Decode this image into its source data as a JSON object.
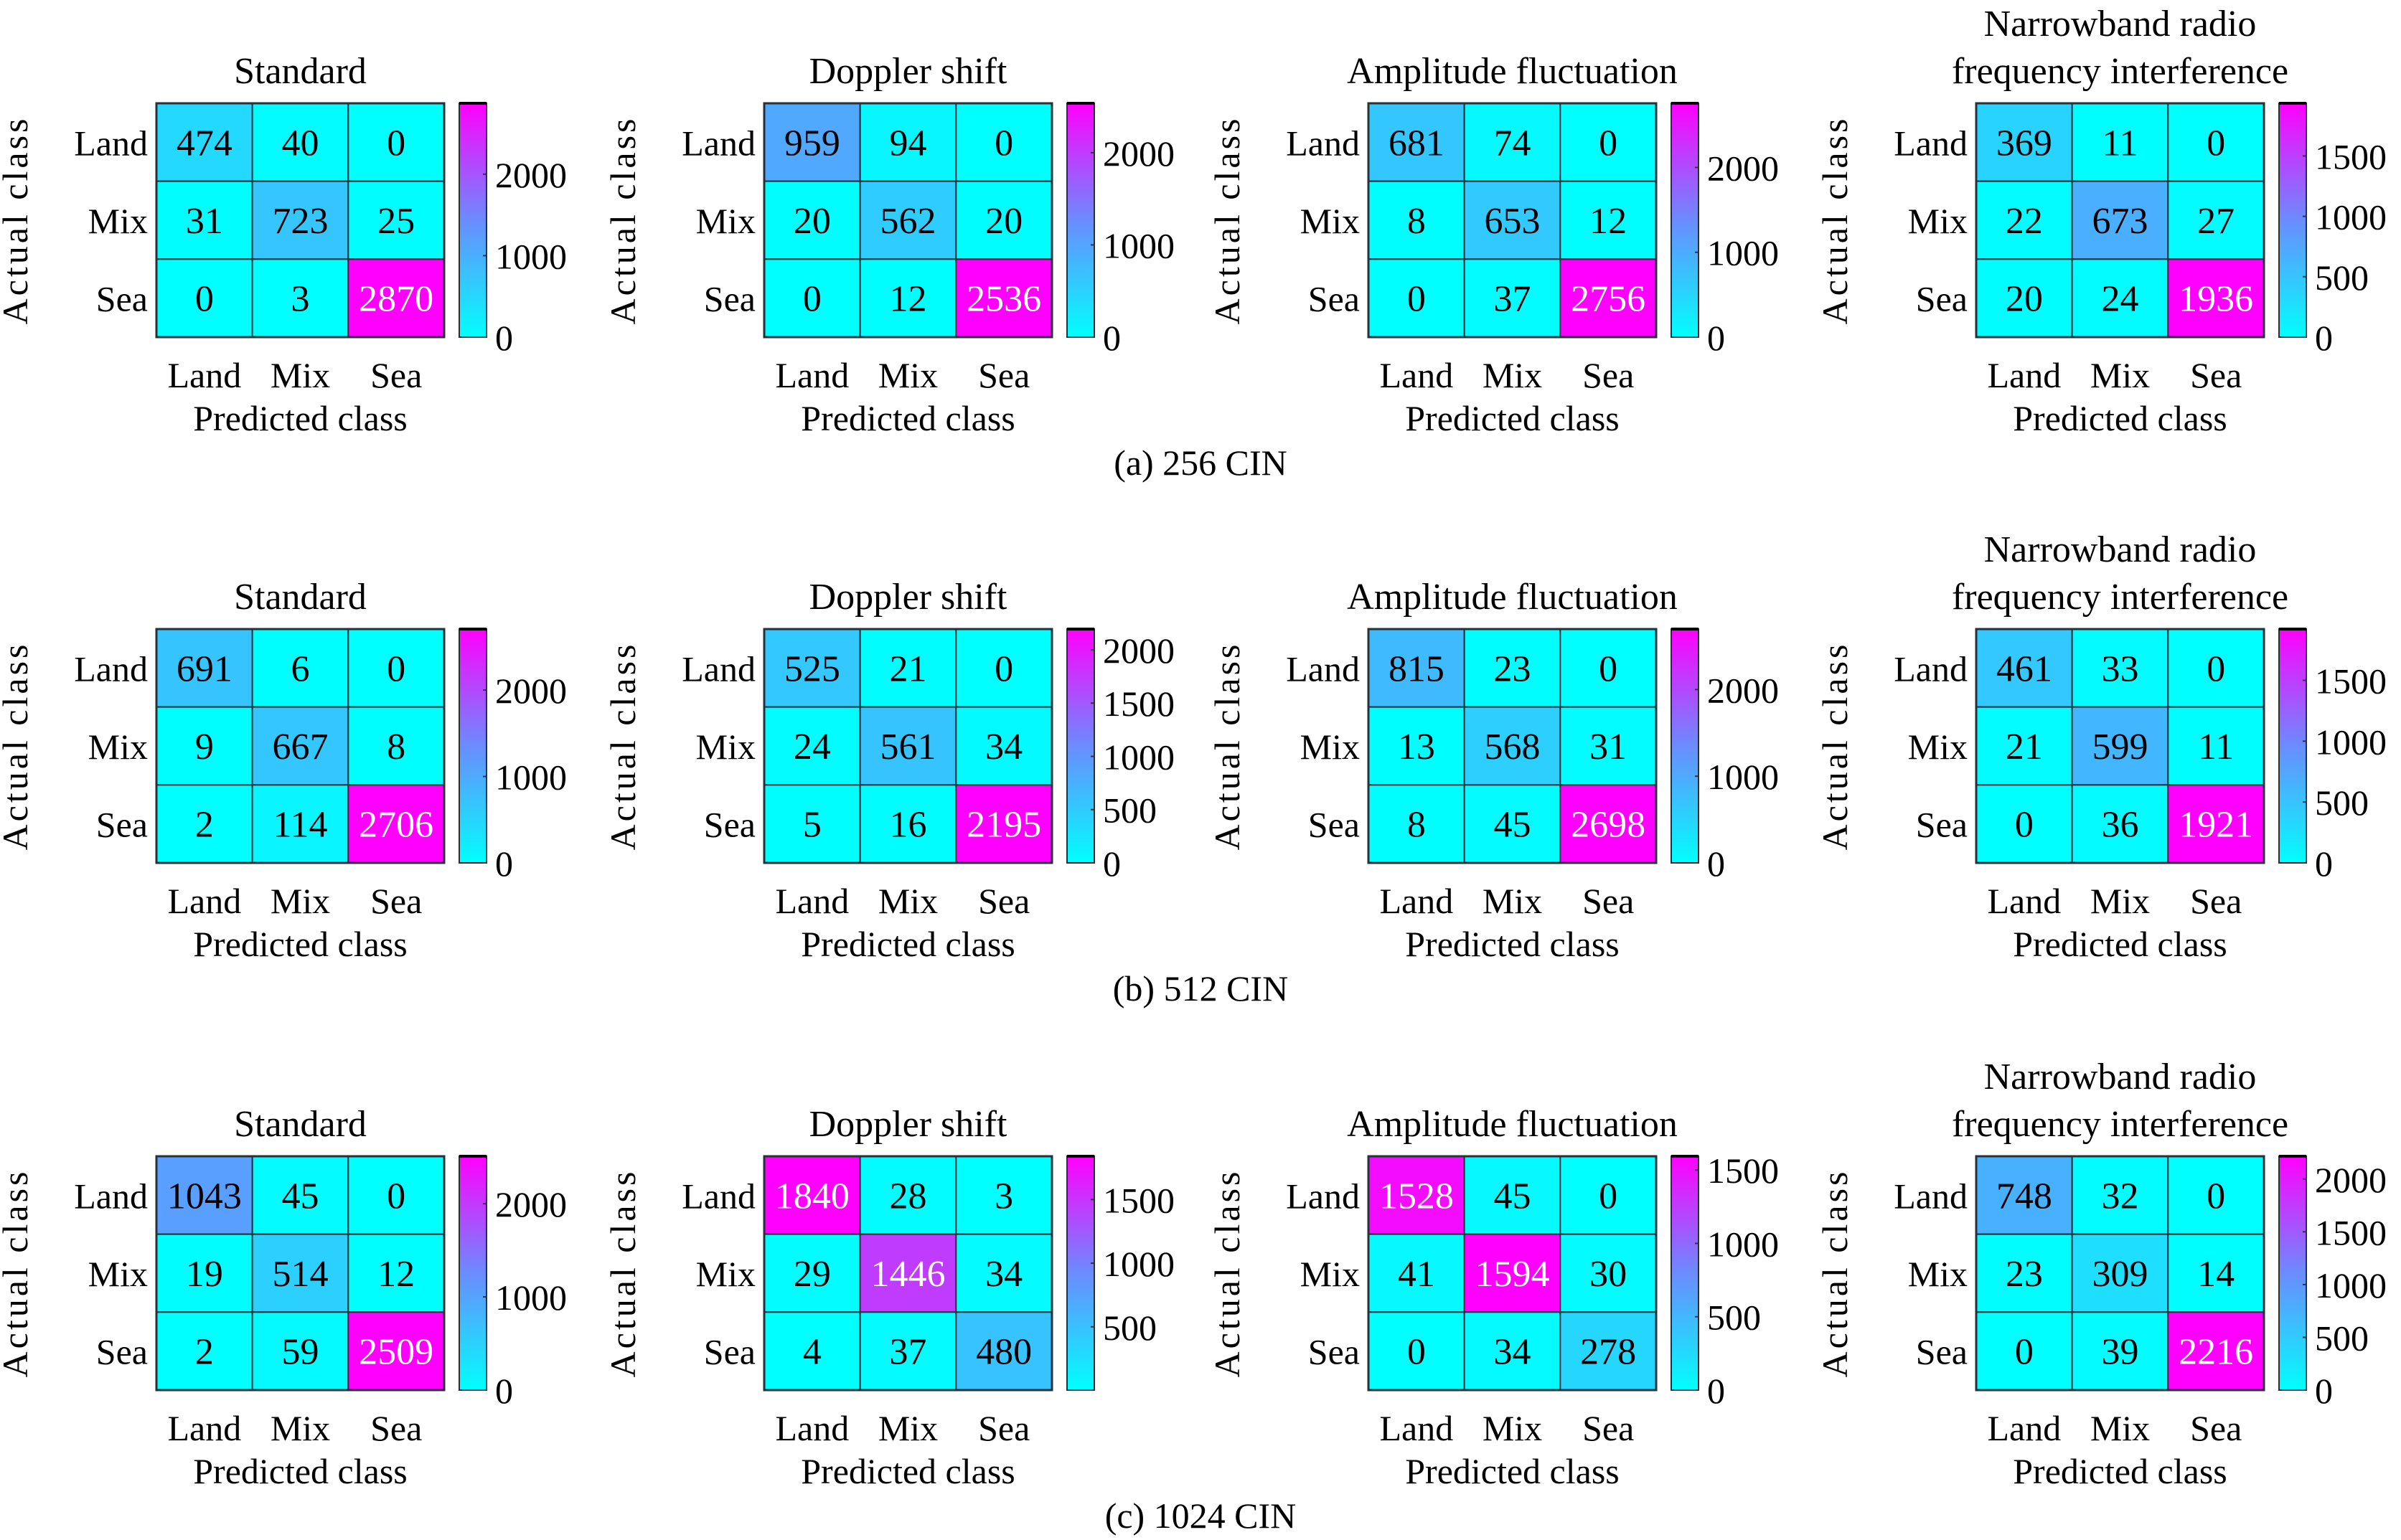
{
  "chart_data": {
    "type": "heatmap",
    "description": "Confusion matrices for land/mix/sea classification under different signal conditions and CIN sizes",
    "row_axis_label": "Actual class",
    "col_axis_label": "Predicted class",
    "classes": [
      "Land",
      "Mix",
      "Sea"
    ],
    "colormap": {
      "low": "#00FFFF",
      "mid": "#6A8CFF",
      "high": "#FF00FF"
    },
    "groups": [
      {
        "caption": "(a) 256 CIN",
        "panels": [
          {
            "title": [
              "Standard"
            ],
            "matrix": [
              [
                474,
                40,
                0
              ],
              [
                31,
                723,
                25
              ],
              [
                0,
                3,
                2870
              ]
            ],
            "colorbar_range": [
              0,
              2870
            ],
            "colorbar_ticks": [
              0,
              1000,
              2000
            ]
          },
          {
            "title": [
              "Doppler shift"
            ],
            "matrix": [
              [
                959,
                94,
                0
              ],
              [
                20,
                562,
                20
              ],
              [
                0,
                12,
                2536
              ]
            ],
            "colorbar_range": [
              0,
              2536
            ],
            "colorbar_ticks": [
              0,
              1000,
              2000
            ]
          },
          {
            "title": [
              "Amplitude fluctuation"
            ],
            "matrix": [
              [
                681,
                74,
                0
              ],
              [
                8,
                653,
                12
              ],
              [
                0,
                37,
                2756
              ]
            ],
            "colorbar_range": [
              0,
              2756
            ],
            "colorbar_ticks": [
              0,
              1000,
              2000
            ]
          },
          {
            "title": [
              "Narrowband radio",
              "frequency interference"
            ],
            "matrix": [
              [
                369,
                11,
                0
              ],
              [
                22,
                673,
                27
              ],
              [
                20,
                24,
                1936
              ]
            ],
            "colorbar_range": [
              0,
              1936
            ],
            "colorbar_ticks": [
              0,
              500,
              1000,
              1500
            ]
          }
        ]
      },
      {
        "caption": "(b) 512 CIN",
        "panels": [
          {
            "title": [
              "Standard"
            ],
            "matrix": [
              [
                691,
                6,
                0
              ],
              [
                9,
                667,
                8
              ],
              [
                2,
                114,
                2706
              ]
            ],
            "colorbar_range": [
              0,
              2706
            ],
            "colorbar_ticks": [
              0,
              1000,
              2000
            ]
          },
          {
            "title": [
              "Doppler shift"
            ],
            "matrix": [
              [
                525,
                21,
                0
              ],
              [
                24,
                561,
                34
              ],
              [
                5,
                16,
                2195
              ]
            ],
            "colorbar_range": [
              0,
              2195
            ],
            "colorbar_ticks": [
              0,
              500,
              1000,
              1500,
              2000
            ]
          },
          {
            "title": [
              "Amplitude fluctuation"
            ],
            "matrix": [
              [
                815,
                23,
                0
              ],
              [
                13,
                568,
                31
              ],
              [
                8,
                45,
                2698
              ]
            ],
            "colorbar_range": [
              0,
              2698
            ],
            "colorbar_ticks": [
              0,
              1000,
              2000
            ]
          },
          {
            "title": [
              "Narrowband radio",
              "frequency interference"
            ],
            "matrix": [
              [
                461,
                33,
                0
              ],
              [
                21,
                599,
                11
              ],
              [
                0,
                36,
                1921
              ]
            ],
            "colorbar_range": [
              0,
              1921
            ],
            "colorbar_ticks": [
              0,
              500,
              1000,
              1500
            ]
          }
        ]
      },
      {
        "caption": "(c) 1024 CIN",
        "panels": [
          {
            "title": [
              "Standard"
            ],
            "matrix": [
              [
                1043,
                45,
                0
              ],
              [
                19,
                514,
                12
              ],
              [
                2,
                59,
                2509
              ]
            ],
            "colorbar_range": [
              0,
              2509
            ],
            "colorbar_ticks": [
              0,
              1000,
              2000
            ]
          },
          {
            "title": [
              "Doppler shift"
            ],
            "matrix": [
              [
                1840,
                28,
                3
              ],
              [
                29,
                1446,
                34
              ],
              [
                4,
                37,
                480
              ]
            ],
            "colorbar_range": [
              3,
              1840
            ],
            "colorbar_ticks": [
              500,
              1000,
              1500
            ]
          },
          {
            "title": [
              "Amplitude fluctuation"
            ],
            "matrix": [
              [
                1528,
                45,
                0
              ],
              [
                41,
                1594,
                30
              ],
              [
                0,
                34,
                278
              ]
            ],
            "colorbar_range": [
              0,
              1594
            ],
            "colorbar_ticks": [
              0,
              500,
              1000,
              1500
            ]
          },
          {
            "title": [
              "Narrowband radio",
              "frequency interference"
            ],
            "matrix": [
              [
                748,
                32,
                0
              ],
              [
                23,
                309,
                14
              ],
              [
                0,
                39,
                2216
              ]
            ],
            "colorbar_range": [
              0,
              2216
            ],
            "colorbar_ticks": [
              0,
              500,
              1000,
              1500,
              2000
            ]
          }
        ]
      }
    ]
  }
}
